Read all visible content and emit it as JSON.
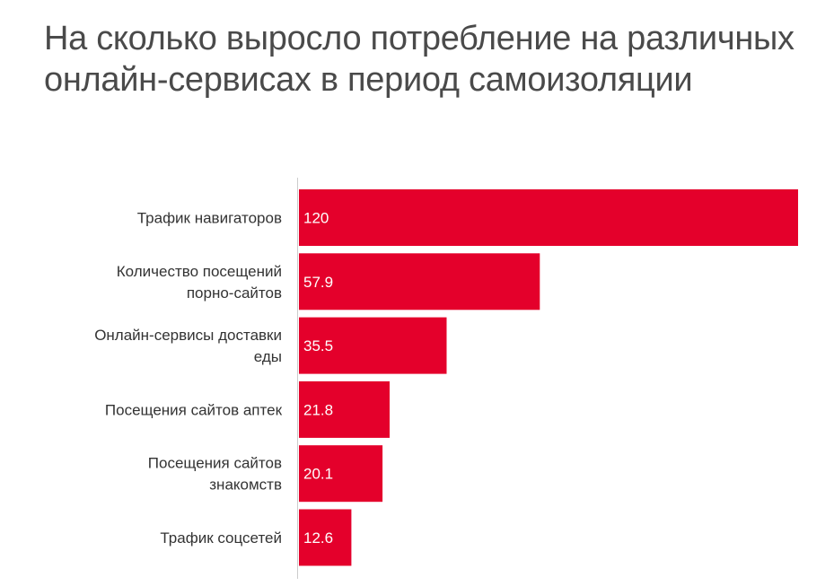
{
  "chart_data": {
    "type": "bar",
    "orientation": "horizontal",
    "title": "На сколько выросло потребление на различных онлайн-сервисах в период самоизоляции",
    "categories": [
      [
        "Трафик навигаторов"
      ],
      [
        "Количество посещений",
        "порно-сайтов"
      ],
      [
        "Онлайн-сервисы доставки",
        "еды"
      ],
      [
        "Посещения сайтов аптек"
      ],
      [
        "Посещения сайтов",
        "знакомств"
      ],
      [
        "Трафик соцсетей"
      ]
    ],
    "values": [
      120,
      57.9,
      35.5,
      21.8,
      20.1,
      12.6
    ],
    "value_labels": [
      "120",
      "57.9",
      "35.5",
      "21.8",
      "20.1",
      "12.6"
    ],
    "xlabel": "",
    "ylabel": "",
    "xlim": [
      0,
      120
    ],
    "grid": false,
    "legend": "none",
    "bar_color": "#e4002b",
    "label_color": "#ffffff",
    "category_color": "#333333",
    "title_color": "#4a4a4a",
    "axis_color": "#cccccc"
  }
}
